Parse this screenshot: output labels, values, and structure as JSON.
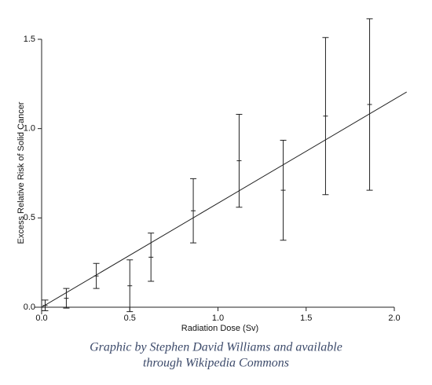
{
  "chart_data": {
    "type": "errorbar",
    "xlabel": "Radiation Dose (Sv)",
    "ylabel": "Excess Relative Risk of Solid Cancer",
    "x": [
      0.02,
      0.14,
      0.31,
      0.5,
      0.62,
      0.86,
      1.12,
      1.37,
      1.61,
      1.86
    ],
    "values": [
      0.01,
      0.05,
      0.175,
      0.12,
      0.28,
      0.54,
      0.82,
      0.655,
      1.07,
      1.135
    ],
    "errors": [
      0.03,
      0.055,
      0.07,
      0.145,
      0.135,
      0.18,
      0.26,
      0.28,
      0.44,
      0.48
    ],
    "fit": {
      "x": [
        0,
        2.07
      ],
      "y": [
        0,
        1.205
      ]
    },
    "color": "#222222",
    "xlim": [
      0,
      2.0
    ],
    "ylim": [
      0,
      1.5
    ],
    "xticks": [
      {
        "value": 0,
        "label": "0.0"
      },
      {
        "value": 0.5,
        "label": "0.5"
      },
      {
        "value": 1,
        "label": "1.0"
      },
      {
        "value": 1.5,
        "label": "1.5"
      },
      {
        "value": 2,
        "label": "2.0"
      }
    ],
    "yticks": [
      {
        "value": 0,
        "label": "0.0"
      },
      {
        "value": 0.5,
        "label": "0.5"
      },
      {
        "value": 1,
        "label": "1.0"
      },
      {
        "value": 1.5,
        "label": "1.5"
      }
    ],
    "caption": [
      "Graphic by Stephen David Williams and available",
      "through Wikipedia Commons"
    ]
  }
}
